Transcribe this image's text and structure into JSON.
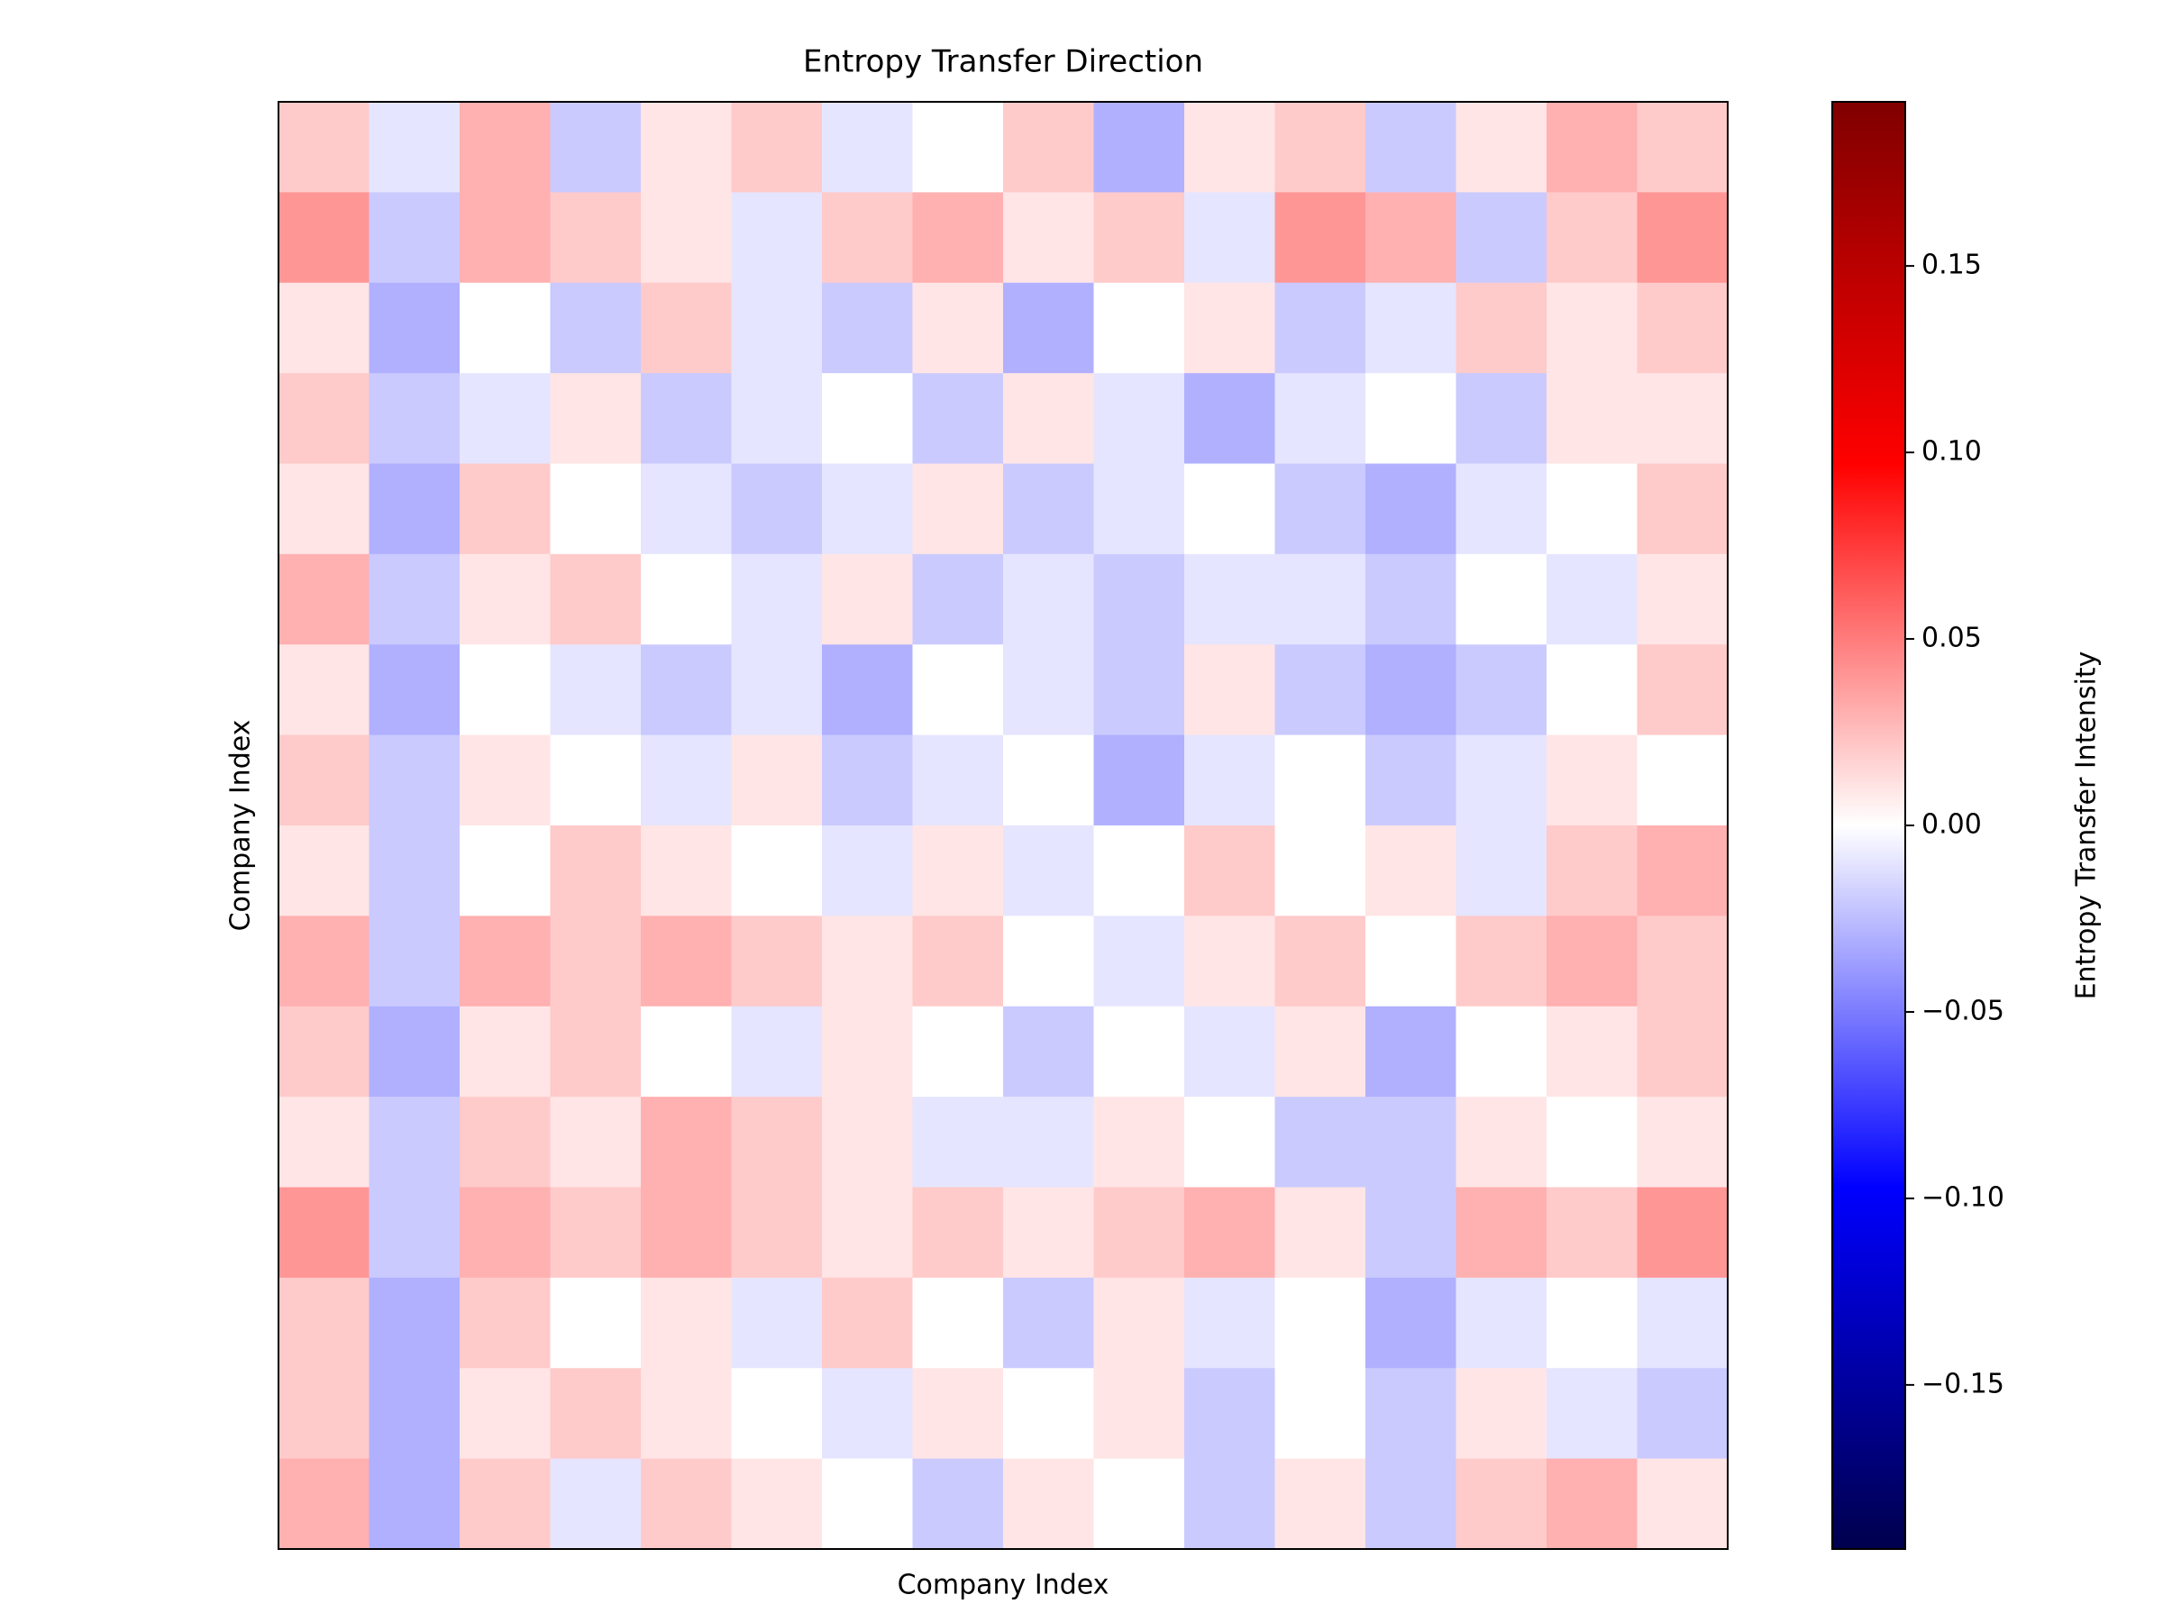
{
  "chart_data": {
    "type": "heatmap",
    "title": "Entropy Transfer Direction",
    "xlabel": "Company Index",
    "ylabel": "Company Index",
    "colorbar_label": "Entropy Transfer Intensity",
    "colormap": "seismic",
    "zlim": [
      -0.194,
      0.194
    ],
    "zticks": [
      {
        "value": -0.15,
        "label": "−0.15"
      },
      {
        "value": -0.1,
        "label": "−0.10"
      },
      {
        "value": -0.05,
        "label": "−0.05"
      },
      {
        "value": 0,
        "label": "0.00"
      },
      {
        "value": 0.05,
        "label": "0.05"
      },
      {
        "value": 0.1,
        "label": "0.10"
      },
      {
        "value": 0.15,
        "label": "0.15"
      }
    ],
    "values": [
      [
        0.02,
        -0.01,
        0.03,
        -0.02,
        0.01,
        0.02,
        -0.01,
        0.0,
        0.02,
        -0.03,
        0.01,
        0.02,
        -0.02,
        0.01,
        0.03,
        0.02
      ],
      [
        0.04,
        -0.02,
        0.03,
        0.02,
        0.01,
        -0.01,
        0.02,
        0.03,
        0.01,
        0.02,
        -0.01,
        0.04,
        0.03,
        -0.02,
        0.02,
        0.04
      ],
      [
        0.01,
        -0.03,
        0.0,
        -0.02,
        0.02,
        -0.01,
        -0.02,
        0.01,
        -0.03,
        0.0,
        0.01,
        -0.02,
        -0.01,
        0.02,
        0.01,
        0.02
      ],
      [
        0.02,
        -0.02,
        -0.01,
        0.01,
        -0.02,
        -0.01,
        0.0,
        -0.02,
        0.01,
        -0.01,
        -0.03,
        -0.01,
        0.0,
        -0.02,
        0.01,
        0.01
      ],
      [
        0.01,
        -0.03,
        0.02,
        0.0,
        -0.01,
        -0.02,
        -0.01,
        0.01,
        -0.02,
        -0.01,
        0.0,
        -0.02,
        -0.03,
        -0.01,
        0.0,
        0.02
      ],
      [
        0.03,
        -0.02,
        0.01,
        0.02,
        0.0,
        -0.01,
        0.01,
        -0.02,
        -0.01,
        -0.02,
        -0.01,
        -0.01,
        -0.02,
        0.0,
        -0.01,
        0.01
      ],
      [
        0.01,
        -0.03,
        0.0,
        -0.01,
        -0.02,
        -0.01,
        -0.03,
        0.0,
        -0.01,
        -0.02,
        0.01,
        -0.02,
        -0.03,
        -0.02,
        0.0,
        0.02
      ],
      [
        0.02,
        -0.02,
        0.01,
        0.0,
        -0.01,
        0.01,
        -0.02,
        -0.01,
        0.0,
        -0.03,
        -0.01,
        0.0,
        -0.02,
        -0.01,
        0.01,
        0.0
      ],
      [
        0.01,
        -0.02,
        0.0,
        0.02,
        0.01,
        0.0,
        -0.01,
        0.01,
        -0.01,
        0.0,
        0.02,
        0.0,
        0.01,
        -0.01,
        0.02,
        0.03
      ],
      [
        0.03,
        -0.02,
        0.03,
        0.02,
        0.03,
        0.02,
        0.01,
        0.02,
        0.0,
        -0.01,
        0.01,
        0.02,
        0.0,
        0.02,
        0.03,
        0.02
      ],
      [
        0.02,
        -0.03,
        0.01,
        0.02,
        0.0,
        -0.01,
        0.01,
        0.0,
        -0.02,
        0.0,
        -0.01,
        0.01,
        -0.03,
        0.0,
        0.01,
        0.02
      ],
      [
        0.01,
        -0.02,
        0.02,
        0.01,
        0.03,
        0.02,
        0.01,
        -0.01,
        -0.01,
        0.01,
        0.0,
        -0.02,
        -0.02,
        0.01,
        0.0,
        0.01
      ],
      [
        0.04,
        -0.02,
        0.03,
        0.02,
        0.03,
        0.02,
        0.01,
        0.02,
        0.01,
        0.02,
        0.03,
        0.01,
        -0.02,
        0.03,
        0.02,
        0.04
      ],
      [
        0.02,
        -0.03,
        0.02,
        0.0,
        0.01,
        -0.01,
        0.02,
        0.0,
        -0.02,
        0.01,
        -0.01,
        0.0,
        -0.03,
        -0.01,
        0.0,
        -0.01
      ],
      [
        0.02,
        -0.03,
        0.01,
        0.02,
        0.01,
        0.0,
        -0.01,
        0.01,
        0.0,
        0.01,
        -0.02,
        0.0,
        -0.02,
        0.01,
        -0.01,
        -0.02
      ],
      [
        0.03,
        -0.03,
        0.02,
        -0.01,
        0.02,
        0.01,
        0.0,
        -0.02,
        0.01,
        0.0,
        -0.02,
        0.01,
        -0.02,
        0.02,
        0.03,
        0.01
      ]
    ]
  }
}
